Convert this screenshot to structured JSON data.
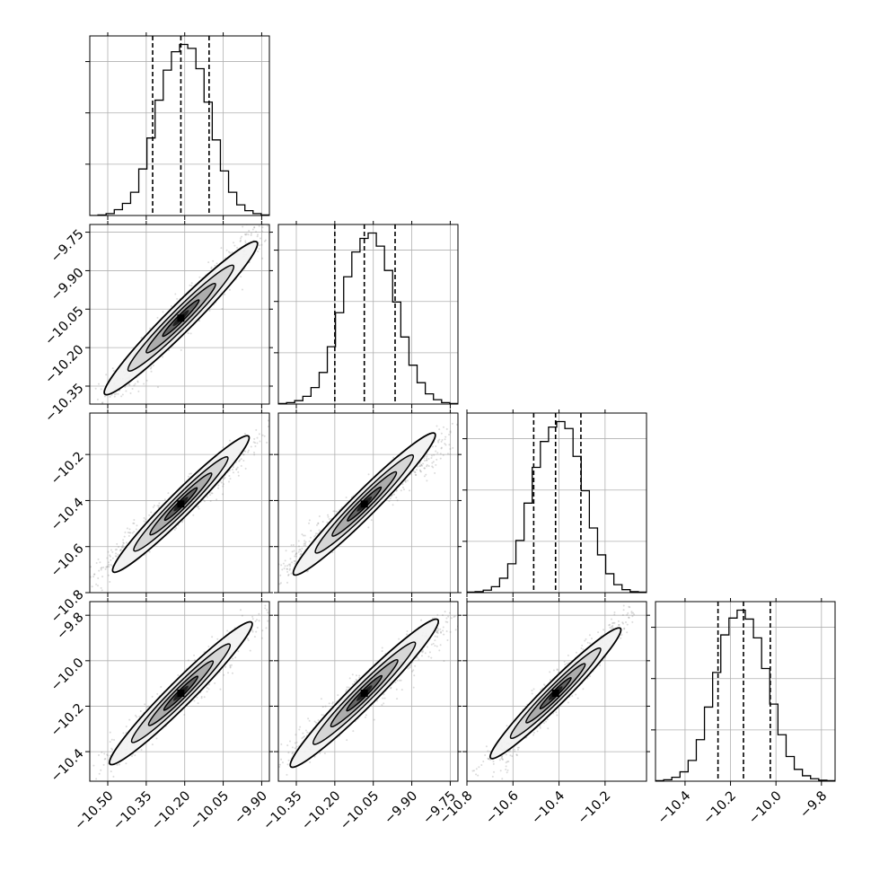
{
  "chart_data": {
    "type": "corner",
    "grid": true,
    "colors": {
      "line": "#000000",
      "grid": "#b0b0b0",
      "points": "#7f7f7f"
    },
    "quantile_lines": "dashed vertical lines on each histogram",
    "parameters": [
      {
        "range": [
          -10.57,
          -9.87
        ],
        "ticks": [
          "−10.50",
          "−10.35",
          "−10.20",
          "−10.05",
          "−9.90"
        ],
        "tick_values": [
          -10.5,
          -10.35,
          -10.2,
          -10.05,
          -9.9
        ],
        "quantiles": [
          -10.325,
          -10.215,
          -10.105
        ]
      },
      {
        "range": [
          -10.42,
          -9.72
        ],
        "ticks": [
          "−9.75",
          "−9.90",
          "−10.05",
          "−10.20",
          "−10.35"
        ],
        "tick_values": [
          -9.75,
          -9.9,
          -10.05,
          -10.2,
          -10.35
        ],
        "quantiles": [
          -10.2,
          -10.085,
          -9.965
        ]
      },
      {
        "range": [
          -10.8,
          -10.02
        ],
        "ticks": [
          "−10.8",
          "−10.6",
          "−10.4",
          "−10.2"
        ],
        "tick_values": [
          -10.8,
          -10.6,
          -10.4,
          -10.2
        ],
        "quantiles": [
          -10.51,
          -10.415,
          -10.305
        ]
      },
      {
        "range": [
          -10.53,
          -9.74
        ],
        "ticks": [
          "−10.4",
          "−10.2",
          "−10.0",
          "−9.8"
        ],
        "tick_values": [
          -10.4,
          -10.2,
          -10.0,
          -9.8
        ],
        "quantiles": [
          -10.255,
          -10.143,
          -10.025
        ]
      }
    ],
    "histograms": [
      [
        0,
        1,
        4,
        12,
        25,
        48,
        96,
        160,
        238,
        300,
        338,
        353,
        345,
        303,
        234,
        156,
        92,
        48,
        22,
        10,
        4,
        1
      ],
      [
        1,
        3,
        7,
        16,
        34,
        65,
        118,
        188,
        262,
        313,
        341,
        352,
        325,
        275,
        210,
        138,
        80,
        44,
        21,
        9,
        3,
        1
      ],
      [
        1,
        2,
        5,
        12,
        29,
        58,
        105,
        180,
        252,
        304,
        333,
        344,
        330,
        274,
        205,
        130,
        76,
        38,
        16,
        6,
        2,
        1
      ],
      [
        1,
        3,
        8,
        19,
        42,
        84,
        150,
        220,
        296,
        330,
        346,
        328,
        290,
        228,
        156,
        94,
        50,
        24,
        11,
        5,
        2,
        1
      ]
    ],
    "correlations": [
      [
        1,
        0.97,
        0.97,
        0.97
      ],
      [
        0.97,
        1,
        0.97,
        0.97
      ],
      [
        0.97,
        0.97,
        1,
        0.97
      ],
      [
        0.97,
        0.97,
        0.97,
        1
      ]
    ]
  }
}
